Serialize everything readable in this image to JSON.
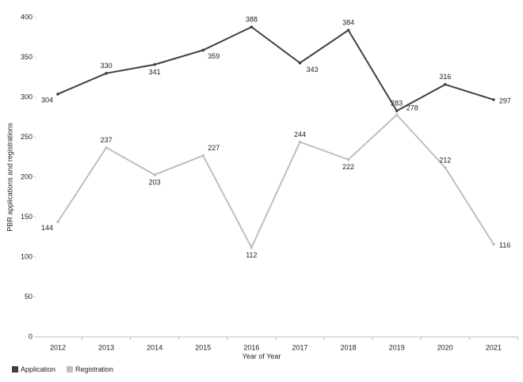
{
  "chart_data": {
    "type": "line",
    "x_label": "Year of Year",
    "y_label": "PBR applications and registrations",
    "categories": [
      "2012",
      "2013",
      "2014",
      "2015",
      "2016",
      "2017",
      "2018",
      "2019",
      "2020",
      "2021"
    ],
    "series": [
      {
        "name": "Application",
        "color": "#404040",
        "values": [
          304,
          330,
          341,
          359,
          388,
          343,
          384,
          283,
          316,
          297
        ]
      },
      {
        "name": "Registration",
        "color": "#bfbfbf",
        "values": [
          144,
          237,
          203,
          227,
          112,
          244,
          222,
          278,
          212,
          116
        ]
      }
    ],
    "ylim": [
      0,
      400
    ],
    "yticks": [
      0,
      50,
      100,
      150,
      200,
      250,
      300,
      350,
      400
    ],
    "grid": false,
    "legend": "bottom-left"
  }
}
